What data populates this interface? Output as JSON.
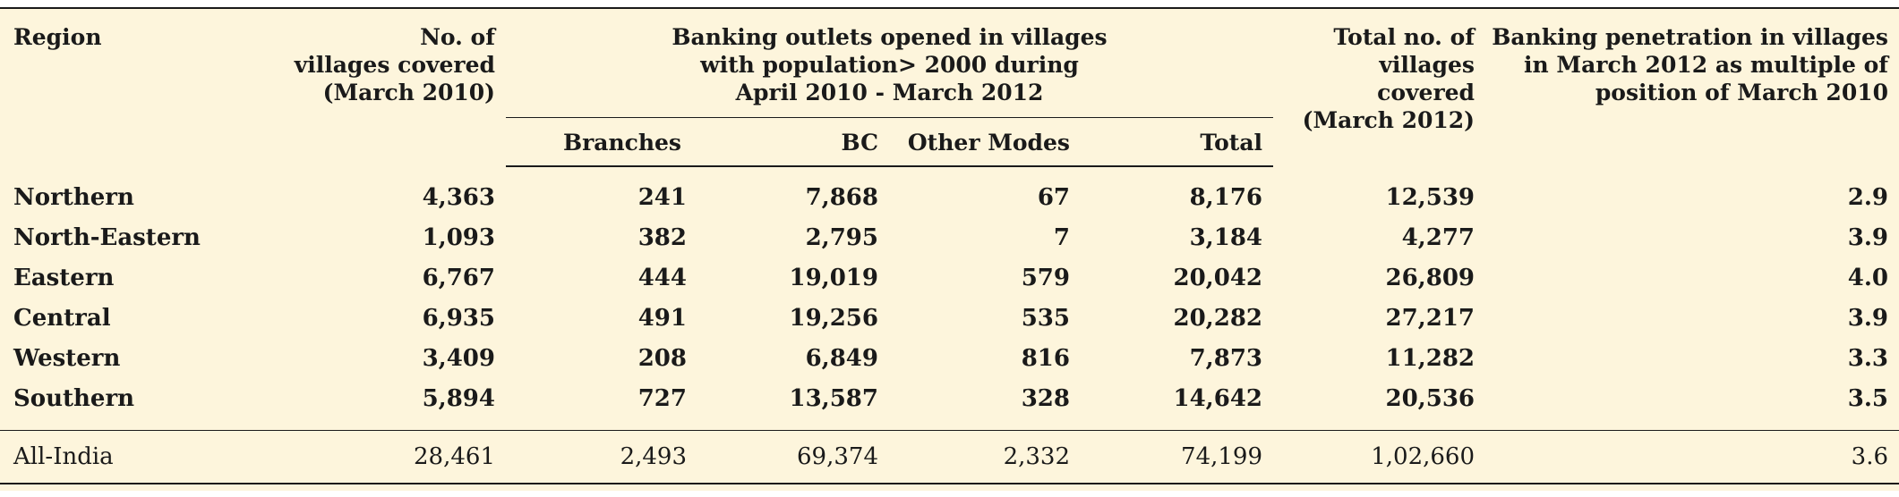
{
  "table": {
    "headers": {
      "region": "Region",
      "villages_2010": [
        "No. of",
        "villages covered",
        "(March 2010)"
      ],
      "group": [
        "Banking outlets opened in villages",
        "with population> 2000 during",
        "April 2010 - March 2012"
      ],
      "branches": "Branches",
      "bc": "BC",
      "other_modes": "Other Modes",
      "total": "Total",
      "villages_2012": [
        "Total no. of",
        "villages",
        "covered",
        "(March 2012)"
      ],
      "penetration": [
        "Banking penetration in villages",
        "in March 2012 as multiple of",
        "position of March 2010"
      ]
    },
    "rows": [
      {
        "region": "Northern",
        "villages_2010": "4,363",
        "branches": "241",
        "bc": "7,868",
        "other": "67",
        "total": "8,176",
        "villages_2012": "12,539",
        "penetration": "2.9"
      },
      {
        "region": "North-Eastern",
        "villages_2010": "1,093",
        "branches": "382",
        "bc": "2,795",
        "other": "7",
        "total": "3,184",
        "villages_2012": "4,277",
        "penetration": "3.9"
      },
      {
        "region": "Eastern",
        "villages_2010": "6,767",
        "branches": "444",
        "bc": "19,019",
        "other": "579",
        "total": "20,042",
        "villages_2012": "26,809",
        "penetration": "4.0"
      },
      {
        "region": "Central",
        "villages_2010": "6,935",
        "branches": "491",
        "bc": "19,256",
        "other": "535",
        "total": "20,282",
        "villages_2012": "27,217",
        "penetration": "3.9"
      },
      {
        "region": "Western",
        "villages_2010": "3,409",
        "branches": "208",
        "bc": "6,849",
        "other": "816",
        "total": "7,873",
        "villages_2012": "11,282",
        "penetration": "3.3"
      },
      {
        "region": "Southern",
        "villages_2010": "5,894",
        "branches": "727",
        "bc": "13,587",
        "other": "328",
        "total": "14,642",
        "villages_2012": "20,536",
        "penetration": "3.5"
      }
    ],
    "footer": {
      "region": "All-India",
      "villages_2010": "28,461",
      "branches": "2,493",
      "bc": "69,374",
      "other": "2,332",
      "total": "74,199",
      "villages_2012": "1,02,660",
      "penetration": "3.6"
    }
  },
  "colors": {
    "background": "#fdf5dc",
    "text": "#1a1a1a",
    "rule": "#1a1a1a"
  }
}
